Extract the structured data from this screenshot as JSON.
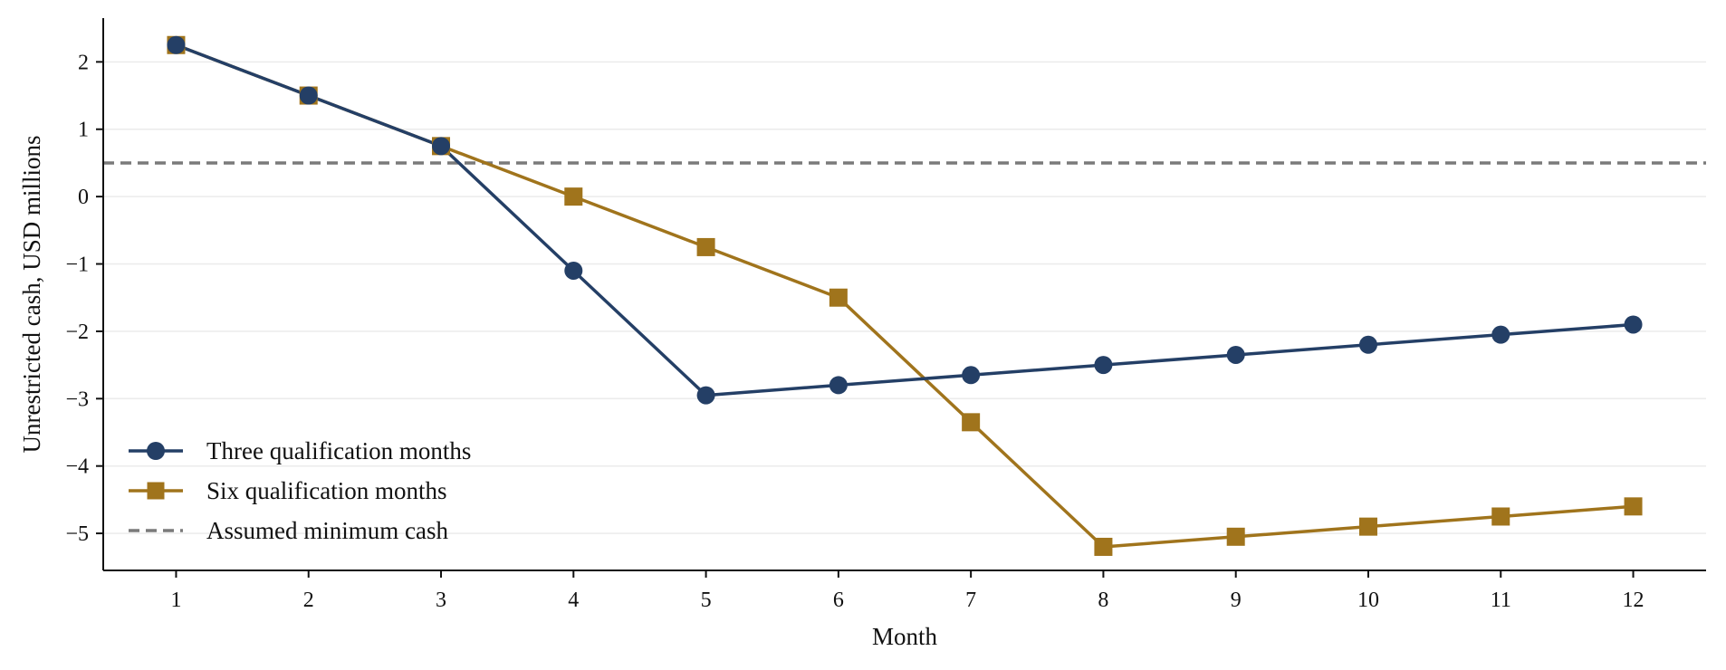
{
  "chart_data": {
    "type": "line",
    "title": "",
    "xlabel": "Month",
    "ylabel": "Unrestricted cash, USD millions",
    "x": [
      1,
      2,
      3,
      4,
      5,
      6,
      7,
      8,
      9,
      10,
      11,
      12
    ],
    "xlim": [
      0.45,
      12.55
    ],
    "ylim": [
      -5.55,
      2.65
    ],
    "yticks": [
      2,
      1,
      0,
      -1,
      -2,
      -3,
      -4,
      -5
    ],
    "ytick_labels": [
      "2",
      "1",
      "0",
      "−1",
      "−2",
      "−3",
      "−4",
      "−5"
    ],
    "xtick_labels": [
      "1",
      "2",
      "3",
      "4",
      "5",
      "6",
      "7",
      "8",
      "9",
      "10",
      "11",
      "12"
    ],
    "grid": "horizontal",
    "legend_position": "lower-left",
    "series": [
      {
        "name": "Three qualification months",
        "marker": "circle",
        "color": "#243f66",
        "values": [
          2.25,
          1.5,
          0.75,
          -1.1,
          -2.95,
          -2.8,
          -2.65,
          -2.5,
          -2.35,
          -2.2,
          -2.05,
          -1.9
        ]
      },
      {
        "name": "Six qualification months",
        "marker": "square",
        "color": "#a0741c",
        "values": [
          2.25,
          1.5,
          0.75,
          0.0,
          -0.75,
          -1.5,
          -3.35,
          -5.2,
          -5.05,
          -4.9,
          -4.75,
          -4.6
        ]
      }
    ],
    "reference_line": {
      "name": "Assumed minimum cash",
      "value": 0.5,
      "style": "dashed",
      "color": "#7a7a7a"
    }
  }
}
